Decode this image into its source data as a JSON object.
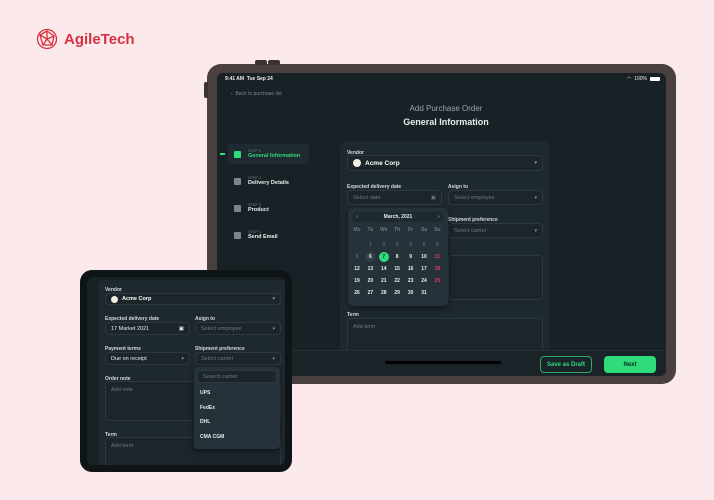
{
  "brand": {
    "name": "AgileTech",
    "color": "#d9303f"
  },
  "tablet": {
    "status": {
      "time": "9:41 AM",
      "date": "Tue Sep 24",
      "battery": "100%"
    },
    "back_link": "Back to purchase list",
    "subtitle": "Add Purchase Order",
    "title": "General Information",
    "steps": [
      {
        "step": "STEP 1",
        "label": "General Information",
        "active": true
      },
      {
        "step": "STEP 2",
        "label": "Delivery Details"
      },
      {
        "step": "STEP 3",
        "label": "Product"
      },
      {
        "step": "STEP 4",
        "label": "Send Email"
      }
    ],
    "form": {
      "vendor_label": "Vendor",
      "vendor_value": "Acme Corp",
      "date_label": "Expected delivery date",
      "date_placeholder": "Select date",
      "assign_label": "Asign to",
      "assign_placeholder": "Select employee",
      "shipment_label": "Shipment preference",
      "shipment_placeholder": "Select carrier",
      "term_label": "Term",
      "term_placeholder": "Add term"
    },
    "calendar": {
      "month": "March, 2021",
      "weekdays": [
        "Mo",
        "Tu",
        "We",
        "Th",
        "Fr",
        "Sa",
        "Su"
      ],
      "prev_month_days": [
        1,
        2,
        3,
        4,
        5,
        6
      ],
      "selected": 7,
      "today": 6,
      "weekend_highlight": [
        11,
        18,
        25
      ],
      "last_day": 31
    },
    "save_draft": "Save as Draft",
    "next": "Next",
    "accent": "#2fdc7a"
  },
  "phone": {
    "vendor_label": "Vendor",
    "vendor_value": "Acme Corp",
    "date_label": "Expected delivery date",
    "date_value": "17 Market 2021",
    "assign_label": "Asign to",
    "assign_placeholder": "Select employee",
    "payment_label": "Payment terms",
    "payment_value": "Due on receipt",
    "shipment_label": "Shipment preference",
    "shipment_placeholder": "Select carrier",
    "note_label": "Order note",
    "note_placeholder": "Add note",
    "term_label": "Term",
    "term_placeholder": "Add term",
    "search_placeholder": "Search carrier",
    "carriers": [
      "UPS",
      "FedEx",
      "DHL",
      "CMA CGM"
    ]
  }
}
